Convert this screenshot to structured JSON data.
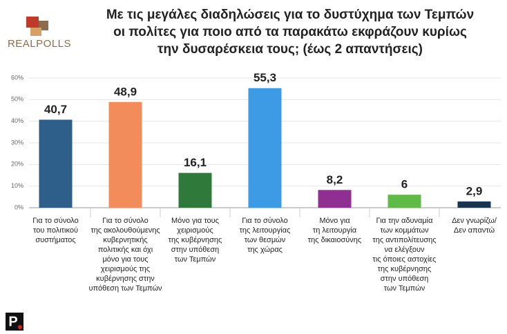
{
  "logo": "REALPOLLS",
  "footer_logo": "P",
  "chart_data": {
    "type": "bar",
    "title": [
      "Με τις μεγάλες διαδηλώσεις για το δυστύχημα των Τεμπών",
      "οι πολίτες για ποιο από τα παρακάτω εκφράζουν κυρίως",
      "την δυσαρέσκεια τους; (έως 2 απαντήσεις)"
    ],
    "categories": [
      [
        "Για το σύνολο",
        "του πολιτικού",
        "συστήματος"
      ],
      [
        "Για το σύνολο",
        "της ακολουθούμενης",
        "κυβερνητικής",
        "πολιτικής και όχι",
        "μόνο για τους",
        "χειρισμούς της",
        "κυβέρνησης στην",
        "υπόθεση των Τεμπών"
      ],
      [
        "Μόνο για τους",
        "χειρισμούς",
        "της κυβέρνησης",
        "στην υπόθεση",
        "των Τεμπών"
      ],
      [
        "Για το σύνολο",
        "της λειτουργίας",
        "των θεσμών",
        "της χώρας"
      ],
      [
        "Μόνο για",
        "τη λειτουργία",
        "της δικαιοσύνης"
      ],
      [
        "Για την αδυναμία",
        "των κομμάτων",
        "της αντιπολίτευσης",
        "να ελέγξουν",
        "τις όποιες αστοχίες",
        "της κυβέρνησης",
        "στην υπόθεση",
        "των Τεμπών"
      ],
      [
        "Δεν γνωρίζω/",
        "Δεν απαντώ"
      ]
    ],
    "values": [
      40.7,
      48.9,
      16.1,
      55.3,
      8.2,
      6,
      2.9
    ],
    "value_labels": [
      "40,7",
      "48,9",
      "16,1",
      "55,3",
      "8,2",
      "6",
      "2,9"
    ],
    "colors": [
      "#2d5f8a",
      "#f28c5a",
      "#2f7a3b",
      "#3d9be6",
      "#8e2f91",
      "#5fba47",
      "#1a3550"
    ],
    "ylim": [
      0,
      60
    ],
    "yticks": [
      {
        "value": 0,
        "label": "0%"
      },
      {
        "value": 10,
        "label": "10%"
      },
      {
        "value": 20,
        "label": "20%"
      },
      {
        "value": 30,
        "label": "30%"
      },
      {
        "value": 40,
        "label": "40%"
      },
      {
        "value": 50,
        "label": "50%"
      },
      {
        "value": 60,
        "label": "60%"
      }
    ],
    "grid": true
  }
}
